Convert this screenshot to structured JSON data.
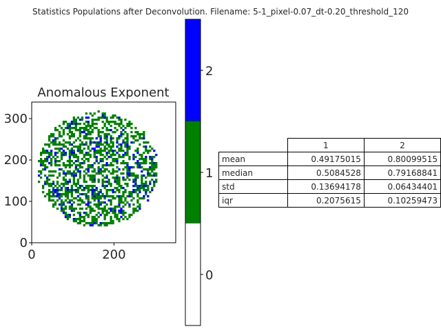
{
  "suptitle": "Statistics Populations after Deconvolution. Filename: 5-1_pixel-0.07_dt-0.20_threshold_120",
  "chart_data": [
    {
      "type": "heatmap",
      "title": "Anomalous Exponent",
      "xlim": [
        0,
        350
      ],
      "ylim": [
        0,
        340
      ],
      "xticks": [
        "0",
        "200"
      ],
      "xtick_values": [
        0,
        200
      ],
      "yticks": [
        "0",
        "100",
        "200",
        "300"
      ],
      "ytick_values": [
        0,
        100,
        200,
        300
      ],
      "blob": {
        "center": [
          160,
          178
        ],
        "radius_x": 145,
        "radius_y": 138
      },
      "classes": [
        0,
        1,
        2
      ],
      "approx_fractions": {
        "0": 0.52,
        "1": 0.4,
        "2": 0.08
      },
      "colorbar": {
        "ticks": [
          "0",
          "1",
          "2"
        ],
        "tick_values": [
          0,
          1,
          2
        ],
        "range": [
          -0.5,
          2.5
        ],
        "colors": [
          "#ffffff",
          "#008000",
          "#0000ff"
        ]
      }
    },
    {
      "type": "table",
      "columns": [
        "1",
        "2"
      ],
      "rows": [
        {
          "label": "mean",
          "values": [
            "0.49175015",
            "0.80099515"
          ]
        },
        {
          "label": "median",
          "values": [
            "0.5084528",
            "0.79168841"
          ]
        },
        {
          "label": "std",
          "values": [
            "0.13694178",
            "0.06434401"
          ]
        },
        {
          "label": "iqr",
          "values": [
            "0.2075615",
            "0.10259473"
          ]
        }
      ]
    }
  ]
}
